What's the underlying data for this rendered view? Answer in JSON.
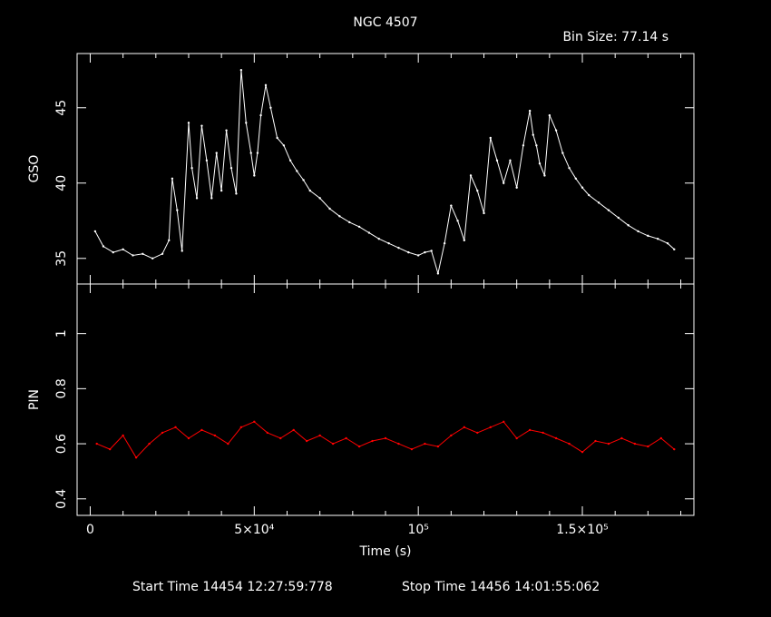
{
  "chart_data": {
    "type": "line",
    "title": "NGC 4507",
    "subtitle": "Bin Size: 77.14 s",
    "xlabel": "Time (s)",
    "xlim": [
      -4000,
      184000
    ],
    "x_ticks": [
      {
        "value": 0,
        "label": "0"
      },
      {
        "value": 50000,
        "label": "5×10⁴"
      },
      {
        "value": 100000,
        "label": "10⁵"
      },
      {
        "value": 150000,
        "label": "1.5×10⁵"
      }
    ],
    "footer": {
      "start": "Start Time 14454 12:27:59:778",
      "stop": "Stop Time 14456 14:01:55:062"
    },
    "panels": [
      {
        "name": "GSO",
        "ylabel": "GSO",
        "ylim": [
          33.3,
          48.6
        ],
        "y_ticks": [
          {
            "value": 35,
            "label": "35"
          },
          {
            "value": 40,
            "label": "40"
          },
          {
            "value": 45,
            "label": "45"
          }
        ],
        "color": "#ffffff",
        "series": [
          {
            "x": [
              1500,
              4000,
              7000,
              10000,
              13000,
              16000,
              19000,
              22000,
              24000,
              25000,
              26500,
              28000,
              30000,
              31000,
              32500,
              34000,
              35500,
              37000,
              38500,
              40000,
              41500,
              43000,
              44500,
              46000,
              47500,
              49000,
              50000,
              51000,
              52000,
              53500,
              55000,
              57000,
              59000,
              61000,
              63000,
              65000,
              67000,
              70000,
              73000,
              76000,
              79000,
              82000,
              85000,
              88000,
              91000,
              94000,
              97000,
              100000,
              102000,
              104000,
              106000,
              108000,
              110000,
              112000,
              114000,
              116000,
              118000,
              120000,
              122000,
              124000,
              126000,
              128000,
              130000,
              132000,
              134000,
              135000,
              136000,
              137000,
              138500,
              140000,
              142000,
              144000,
              146000,
              148000,
              150000,
              152000,
              155000,
              158000,
              161000,
              164000,
              167000,
              170000,
              173000,
              176000,
              178000
            ],
            "y": [
              36.8,
              35.8,
              35.4,
              35.6,
              35.2,
              35.3,
              35.0,
              35.3,
              36.2,
              40.3,
              38.2,
              35.5,
              44.0,
              41.0,
              39.0,
              43.8,
              41.5,
              39.0,
              42.0,
              39.5,
              43.5,
              41.0,
              39.3,
              47.5,
              44.0,
              42.0,
              40.5,
              42.0,
              44.5,
              46.5,
              45.0,
              43.0,
              42.5,
              41.5,
              40.8,
              40.2,
              39.5,
              39.0,
              38.3,
              37.8,
              37.4,
              37.1,
              36.7,
              36.3,
              36.0,
              35.7,
              35.4,
              35.2,
              35.4,
              35.5,
              34.0,
              36.0,
              38.5,
              37.5,
              36.2,
              40.5,
              39.5,
              38.0,
              43.0,
              41.5,
              40.0,
              41.5,
              39.7,
              42.5,
              44.8,
              43.2,
              42.5,
              41.3,
              40.5,
              44.5,
              43.5,
              42.0,
              41.0,
              40.3,
              39.7,
              39.2,
              38.7,
              38.2,
              37.7,
              37.2,
              36.8,
              36.5,
              36.3,
              36.0,
              35.6
            ]
          }
        ]
      },
      {
        "name": "PIN",
        "ylabel": "PIN",
        "ylim": [
          0.34,
          1.18
        ],
        "y_ticks": [
          {
            "value": 0.4,
            "label": "0.4"
          },
          {
            "value": 0.6,
            "label": "0.6"
          },
          {
            "value": 0.8,
            "label": "0.8"
          },
          {
            "value": 1.0,
            "label": "1"
          }
        ],
        "color": "#ff0000",
        "series": [
          {
            "x": [
              2000,
              6000,
              10000,
              14000,
              18000,
              22000,
              26000,
              30000,
              34000,
              38000,
              42000,
              46000,
              50000,
              54000,
              58000,
              62000,
              66000,
              70000,
              74000,
              78000,
              82000,
              86000,
              90000,
              94000,
              98000,
              102000,
              106000,
              110000,
              114000,
              118000,
              122000,
              126000,
              130000,
              134000,
              138000,
              142000,
              146000,
              150000,
              154000,
              158000,
              162000,
              166000,
              170000,
              174000,
              178000
            ],
            "y": [
              0.6,
              0.58,
              0.63,
              0.55,
              0.6,
              0.64,
              0.66,
              0.62,
              0.65,
              0.63,
              0.6,
              0.66,
              0.68,
              0.64,
              0.62,
              0.65,
              0.61,
              0.63,
              0.6,
              0.62,
              0.59,
              0.61,
              0.62,
              0.6,
              0.58,
              0.6,
              0.59,
              0.63,
              0.66,
              0.64,
              0.66,
              0.68,
              0.62,
              0.65,
              0.64,
              0.62,
              0.6,
              0.57,
              0.61,
              0.6,
              0.62,
              0.6,
              0.59,
              0.62,
              0.58
            ]
          }
        ]
      }
    ]
  }
}
